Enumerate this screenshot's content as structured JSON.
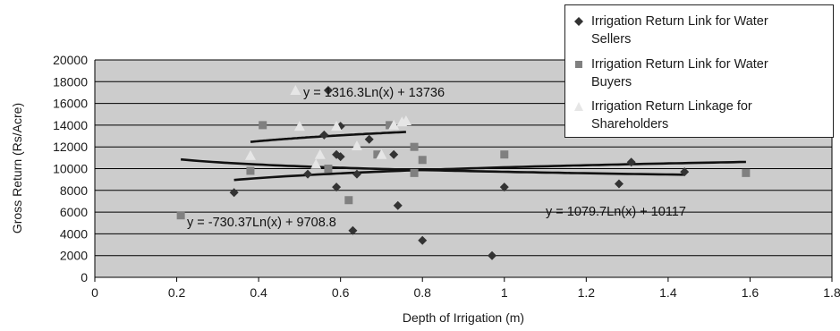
{
  "chart_data": {
    "type": "scatter",
    "xlabel": "Depth of Irrigation (m)",
    "ylabel": "Gross Return (Rs/Acre)",
    "xlim": [
      0,
      1.8
    ],
    "ylim": [
      0,
      20000
    ],
    "x_ticks": [
      "0",
      "0.2",
      "0.4",
      "0.6",
      "0.8",
      "1",
      "1.2",
      "1.4",
      "1.6",
      "1.8"
    ],
    "y_ticks": [
      "0",
      "2000",
      "4000",
      "6000",
      "8000",
      "10000",
      "12000",
      "14000",
      "16000",
      "18000",
      "20000"
    ],
    "grid": "horizontal",
    "legend_position": "top-right",
    "plot_background": "#cccccc",
    "series": [
      {
        "name": "Irrigation Return Link for Water Sellers",
        "marker": "diamond",
        "color": "#333333",
        "points": [
          [
            0.34,
            7800
          ],
          [
            0.52,
            9500
          ],
          [
            0.56,
            13100
          ],
          [
            0.57,
            17200
          ],
          [
            0.59,
            11300
          ],
          [
            0.59,
            8300
          ],
          [
            0.6,
            13900
          ],
          [
            0.6,
            11100
          ],
          [
            0.63,
            4300
          ],
          [
            0.64,
            9500
          ],
          [
            0.67,
            12700
          ],
          [
            0.73,
            11300
          ],
          [
            0.74,
            6600
          ],
          [
            0.8,
            3400
          ],
          [
            0.97,
            2000
          ],
          [
            1.0,
            8300
          ],
          [
            1.28,
            8600
          ],
          [
            1.31,
            10600
          ],
          [
            1.44,
            9700
          ]
        ],
        "trendline": {
          "a": 1079.7,
          "b": 10117,
          "x_range": [
            0.34,
            1.59
          ],
          "label": "y = 1079.7Ln(x) + 10117"
        }
      },
      {
        "name": "Irrigation Return Link for Water Buyers",
        "marker": "square",
        "color": "#808080",
        "points": [
          [
            0.21,
            5700
          ],
          [
            0.38,
            9800
          ],
          [
            0.41,
            14000
          ],
          [
            0.57,
            10000
          ],
          [
            0.62,
            7100
          ],
          [
            0.69,
            11300
          ],
          [
            0.72,
            14000
          ],
          [
            0.78,
            12000
          ],
          [
            0.78,
            9600
          ],
          [
            0.8,
            10800
          ],
          [
            1.0,
            11300
          ],
          [
            1.59,
            9600
          ]
        ],
        "trendline": {
          "a": -730.37,
          "b": 9708.8,
          "x_range": [
            0.21,
            1.44
          ],
          "label": "y = -730.37Ln(x) + 9708.8"
        }
      },
      {
        "name": "Irrigation Return Linkage for Shareholders",
        "marker": "triangle",
        "color": "#e6e6e6",
        "points": [
          [
            0.38,
            11200
          ],
          [
            0.49,
            17200
          ],
          [
            0.5,
            13900
          ],
          [
            0.54,
            10400
          ],
          [
            0.55,
            11300
          ],
          [
            0.59,
            13900
          ],
          [
            0.64,
            12100
          ],
          [
            0.7,
            11300
          ],
          [
            0.73,
            14000
          ],
          [
            0.75,
            14300
          ],
          [
            0.76,
            14400
          ]
        ],
        "trendline": {
          "a": 1316.3,
          "b": 13736,
          "x_range": [
            0.38,
            0.76
          ],
          "label": "y = 1316.3Ln(x) + 13736"
        }
      }
    ]
  }
}
